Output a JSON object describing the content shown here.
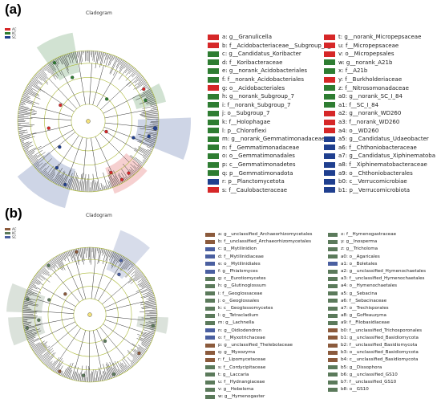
{
  "colors": {
    "AC": "#d62728",
    "KC": "#2e7d32",
    "SC": "#1f3f8f",
    "b_AC": "#8b5a3c",
    "b_KC": "#5b7a5b",
    "b_SC": "#4a5fa0"
  },
  "panel_a": {
    "letter": "(a)",
    "title": "Cladogram",
    "mini_legend": [
      "AC",
      "KC",
      "SC"
    ],
    "legend": [
      {
        "text": "a: g__Granulicella",
        "group": "AC"
      },
      {
        "text": "b: f__Acidobacteriaceae__Subgroup_1_",
        "group": "AC"
      },
      {
        "text": "c: g__Candidatus_Koribacter",
        "group": "KC"
      },
      {
        "text": "d: f__Koribacteraceae",
        "group": "KC"
      },
      {
        "text": "e: g__norank_Acidobacteriales",
        "group": "KC"
      },
      {
        "text": "f: f__norank_Acidobacteriales",
        "group": "KC"
      },
      {
        "text": "g: o__Acidobacteriales",
        "group": "AC"
      },
      {
        "text": "h: g__norank_Subgroup_7",
        "group": "KC"
      },
      {
        "text": "i: f__norank_Subgroup_7",
        "group": "KC"
      },
      {
        "text": "j: o__Subgroup_7",
        "group": "KC"
      },
      {
        "text": "k: f__Holophagae",
        "group": "KC"
      },
      {
        "text": "l: p__Chloroflexi",
        "group": "KC"
      },
      {
        "text": "m: g__norank_Gemmatimonadaceae",
        "group": "KC"
      },
      {
        "text": "n: f__Gemmatimonadaceae",
        "group": "KC"
      },
      {
        "text": "o: o__Gemmatimonadales",
        "group": "KC"
      },
      {
        "text": "p: c__Gemmatimonadetes",
        "group": "KC"
      },
      {
        "text": "q: p__Gemmatimonadota",
        "group": "KC"
      },
      {
        "text": "r: p__Planctomycetota",
        "group": "SC"
      },
      {
        "text": "s: f__Caulobacteraceae",
        "group": "AC"
      },
      {
        "text": "t: g__norank_Micropepsaceae",
        "group": "AC"
      },
      {
        "text": "u: f__Micropepsaceae",
        "group": "AC"
      },
      {
        "text": "v: o__Micropepsales",
        "group": "AC"
      },
      {
        "text": "w: g__norank_A21b",
        "group": "KC"
      },
      {
        "text": "x: f__A21b",
        "group": "KC"
      },
      {
        "text": "y: f__Burkholderiaceae",
        "group": "AC"
      },
      {
        "text": "z: f__Nitrosomonadaceae",
        "group": "KC"
      },
      {
        "text": "a0: g__norank_SC_I_84",
        "group": "KC"
      },
      {
        "text": "a1: f__SC_I_84",
        "group": "KC"
      },
      {
        "text": "a2: g__norank_WD260",
        "group": "AC"
      },
      {
        "text": "a3: f__norank_WD260",
        "group": "AC"
      },
      {
        "text": "a4: o__WD260",
        "group": "AC"
      },
      {
        "text": "a5: g__Candidatus_Udaeobacter",
        "group": "SC"
      },
      {
        "text": "a6: f__Chthoniobacteraceae",
        "group": "SC"
      },
      {
        "text": "a7: g__Candidatus_Xiphinematoba",
        "group": "SC"
      },
      {
        "text": "a8: f__Xiphinematobacteraceae",
        "group": "SC"
      },
      {
        "text": "a9: o__Chthoniobacterales",
        "group": "SC"
      },
      {
        "text": "b0: c__Verrucomicrobiae",
        "group": "SC"
      },
      {
        "text": "b1: p__Verrucomicrobiota",
        "group": "SC"
      }
    ]
  },
  "panel_b": {
    "letter": "(b)",
    "title": "Cladogram",
    "mini_legend": [
      "AC",
      "KC",
      "SC"
    ],
    "legend": [
      {
        "text": "a: g__unclassified_Archaeorhizomycetales",
        "group": "b_AC"
      },
      {
        "text": "b: f__unclassified_Archaeorhizomycetales",
        "group": "b_AC"
      },
      {
        "text": "c: g__Mytilinidion",
        "group": "b_SC"
      },
      {
        "text": "d: f__Mytilinidiaceae",
        "group": "b_SC"
      },
      {
        "text": "e: o__Mytilinidiales",
        "group": "b_SC"
      },
      {
        "text": "f: g__Phialomyces",
        "group": "b_SC"
      },
      {
        "text": "g: c__Eurotiomycetes",
        "group": "b_KC"
      },
      {
        "text": "h: g__Glutinoglossum",
        "group": "b_KC"
      },
      {
        "text": "i: f__Geoglossaceae",
        "group": "b_KC"
      },
      {
        "text": "j: o__Geoglossales",
        "group": "b_KC"
      },
      {
        "text": "k: c__Geoglossomycetes",
        "group": "b_KC"
      },
      {
        "text": "l: g__Tetracladium",
        "group": "b_KC"
      },
      {
        "text": "m: g__Lachnella",
        "group": "b_KC"
      },
      {
        "text": "n: g__Oidiodendron",
        "group": "b_SC"
      },
      {
        "text": "o: f__Myxotrichaceae",
        "group": "b_SC"
      },
      {
        "text": "p: g__unclassified_Thelebolaceae",
        "group": "b_AC"
      },
      {
        "text": "q: g__Myxozyma",
        "group": "b_AC"
      },
      {
        "text": "r: f__Lipomycetaceae",
        "group": "b_AC"
      },
      {
        "text": "s: f__Cordycipitaceae",
        "group": "b_KC"
      },
      {
        "text": "t: g__Laccaria",
        "group": "b_KC"
      },
      {
        "text": "u: f__Hydnangiaceae",
        "group": "b_KC"
      },
      {
        "text": "v: g__Hebeloma",
        "group": "b_KC"
      },
      {
        "text": "w: g__Hymenogaster",
        "group": "b_KC"
      },
      {
        "text": "x: f__Hymenogastraceae",
        "group": "b_KC"
      },
      {
        "text": "y: g__Inosperma",
        "group": "b_KC"
      },
      {
        "text": "z: g__Tricholoma",
        "group": "b_KC"
      },
      {
        "text": "a0: o__Agaricales",
        "group": "b_KC"
      },
      {
        "text": "a1: o__Boletales",
        "group": "b_SC"
      },
      {
        "text": "a2: g__unclassified_Hymenochaetales",
        "group": "b_KC"
      },
      {
        "text": "a3: f__unclassified_Hymenochaetales",
        "group": "b_KC"
      },
      {
        "text": "a4: o__Hymenochaetales",
        "group": "b_KC"
      },
      {
        "text": "a5: g__Sebacina",
        "group": "b_KC"
      },
      {
        "text": "a6: f__Sebacinaceae",
        "group": "b_KC"
      },
      {
        "text": "a7: o__Trechisporales",
        "group": "b_KC"
      },
      {
        "text": "a8: g__Goffeauzyma",
        "group": "b_KC"
      },
      {
        "text": "a9: f__Filobasidiaceae",
        "group": "b_KC"
      },
      {
        "text": "b0: f__unclassified_Trichosporonales",
        "group": "b_AC"
      },
      {
        "text": "b1: g__unclassified_Basidiomycota",
        "group": "b_AC"
      },
      {
        "text": "b2: f__unclassified_Basidiomycota",
        "group": "b_AC"
      },
      {
        "text": "b3: o__unclassified_Basidiomycota",
        "group": "b_AC"
      },
      {
        "text": "b4: c__unclassified_Basidiomycota",
        "group": "b_AC"
      },
      {
        "text": "b5: g__Dissophora",
        "group": "b_KC"
      },
      {
        "text": "b6: g__unclassified_GS10",
        "group": "b_KC"
      },
      {
        "text": "b7: f__unclassified_GS10",
        "group": "b_KC"
      },
      {
        "text": "b8: o__GS10",
        "group": "b_KC"
      }
    ]
  },
  "chart_data": [
    {
      "type": "cladogram",
      "panel": "(a)",
      "title": "Cladogram",
      "groups": [
        "AC",
        "KC",
        "SC"
      ],
      "taxa_count": 38
    },
    {
      "type": "cladogram",
      "panel": "(b)",
      "title": "Cladogram",
      "groups": [
        "AC",
        "KC",
        "SC"
      ],
      "taxa_count": 45
    }
  ]
}
